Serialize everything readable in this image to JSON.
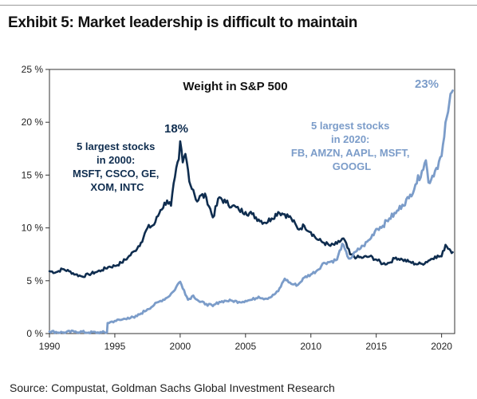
{
  "title": "Exhibit 5: Market leadership is difficult to maintain",
  "source": "Source: Compustat, Goldman Sachs Global Investment Research",
  "colors": {
    "series_2000": "#0f2d4f",
    "series_2020": "#7b9cc9",
    "axis": "#333333"
  },
  "chart_data": {
    "type": "line",
    "title": "Weight in S&P 500",
    "xlim": [
      1990,
      2021
    ],
    "ylim": [
      0,
      25
    ],
    "x_ticks": [
      1990,
      1995,
      2000,
      2005,
      2010,
      2015,
      2020
    ],
    "x_tick_labels": [
      "1990",
      "1995",
      "2000",
      "2005",
      "2010",
      "2015",
      "2020"
    ],
    "y_ticks": [
      0,
      5,
      10,
      15,
      20,
      25
    ],
    "y_tick_labels": [
      "0 %",
      "5 %",
      "10 %",
      "15 %",
      "20 %",
      "25 %"
    ],
    "grid": false,
    "series": [
      {
        "name": "5 largest stocks in 2000",
        "color": "#0f2d4f",
        "points": [
          [
            1990.0,
            5.9
          ],
          [
            1990.5,
            5.8
          ],
          [
            1991.0,
            6.1
          ],
          [
            1991.5,
            5.9
          ],
          [
            1992.0,
            5.6
          ],
          [
            1992.5,
            5.4
          ],
          [
            1993.0,
            5.6
          ],
          [
            1993.5,
            5.8
          ],
          [
            1994.0,
            6.0
          ],
          [
            1994.5,
            6.3
          ],
          [
            1995.0,
            6.4
          ],
          [
            1995.5,
            6.7
          ],
          [
            1996.0,
            7.2
          ],
          [
            1996.5,
            7.8
          ],
          [
            1997.0,
            8.6
          ],
          [
            1997.5,
            10.0
          ],
          [
            1998.0,
            10.3
          ],
          [
            1998.5,
            11.7
          ],
          [
            1999.0,
            12.6
          ],
          [
            1999.3,
            12.1
          ],
          [
            1999.6,
            14.8
          ],
          [
            1999.9,
            16.5
          ],
          [
            2000.0,
            18.2
          ],
          [
            2000.2,
            16.2
          ],
          [
            2000.4,
            17.0
          ],
          [
            2000.6,
            15.5
          ],
          [
            2000.8,
            14.0
          ],
          [
            2001.0,
            13.6
          ],
          [
            2001.3,
            12.5
          ],
          [
            2001.6,
            13.1
          ],
          [
            2002.0,
            12.9
          ],
          [
            2002.5,
            11.0
          ],
          [
            2003.0,
            12.9
          ],
          [
            2003.5,
            12.4
          ],
          [
            2004.0,
            12.1
          ],
          [
            2004.5,
            11.7
          ],
          [
            2005.0,
            11.5
          ],
          [
            2005.5,
            11.3
          ],
          [
            2006.0,
            10.8
          ],
          [
            2006.5,
            10.5
          ],
          [
            2007.0,
            10.9
          ],
          [
            2007.5,
            11.5
          ],
          [
            2008.0,
            11.3
          ],
          [
            2008.5,
            10.9
          ],
          [
            2009.0,
            9.9
          ],
          [
            2009.5,
            10.2
          ],
          [
            2010.0,
            9.6
          ],
          [
            2010.5,
            8.9
          ],
          [
            2011.0,
            8.6
          ],
          [
            2011.5,
            8.3
          ],
          [
            2012.0,
            8.5
          ],
          [
            2012.5,
            9.0
          ],
          [
            2013.0,
            7.5
          ],
          [
            2013.5,
            7.2
          ],
          [
            2014.0,
            7.2
          ],
          [
            2014.5,
            7.3
          ],
          [
            2015.0,
            7.0
          ],
          [
            2015.5,
            6.6
          ],
          [
            2016.0,
            6.7
          ],
          [
            2016.5,
            7.2
          ],
          [
            2017.0,
            7.0
          ],
          [
            2017.5,
            6.8
          ],
          [
            2018.0,
            6.6
          ],
          [
            2018.5,
            6.6
          ],
          [
            2019.0,
            6.9
          ],
          [
            2019.5,
            7.3
          ],
          [
            2020.0,
            7.3
          ],
          [
            2020.3,
            8.4
          ],
          [
            2020.6,
            8.0
          ],
          [
            2020.85,
            7.7
          ]
        ]
      },
      {
        "name": "5 largest stocks in 2020",
        "color": "#7b9cc9",
        "points": [
          [
            1990.0,
            0.2
          ],
          [
            1991.0,
            0.1
          ],
          [
            1992.0,
            0.2
          ],
          [
            1993.0,
            0.1
          ],
          [
            1994.0,
            0.1
          ],
          [
            1994.4,
            0.1
          ],
          [
            1994.45,
            1.0
          ],
          [
            1995.0,
            1.2
          ],
          [
            1995.5,
            1.3
          ],
          [
            1996.0,
            1.5
          ],
          [
            1996.5,
            1.5
          ],
          [
            1997.0,
            1.9
          ],
          [
            1997.5,
            2.3
          ],
          [
            1998.0,
            2.7
          ],
          [
            1998.5,
            3.1
          ],
          [
            1999.0,
            3.4
          ],
          [
            1999.5,
            4.0
          ],
          [
            1999.9,
            4.8
          ],
          [
            2000.0,
            4.9
          ],
          [
            2000.3,
            4.1
          ],
          [
            2000.6,
            3.2
          ],
          [
            2001.0,
            3.6
          ],
          [
            2001.5,
            3.0
          ],
          [
            2002.0,
            2.8
          ],
          [
            2002.5,
            2.6
          ],
          [
            2003.0,
            3.0
          ],
          [
            2003.5,
            3.1
          ],
          [
            2004.0,
            3.1
          ],
          [
            2004.5,
            3.0
          ],
          [
            2005.0,
            3.1
          ],
          [
            2005.5,
            3.2
          ],
          [
            2006.0,
            3.5
          ],
          [
            2006.5,
            3.3
          ],
          [
            2007.0,
            3.5
          ],
          [
            2007.5,
            4.0
          ],
          [
            2008.0,
            5.2
          ],
          [
            2008.5,
            4.7
          ],
          [
            2009.0,
            4.6
          ],
          [
            2009.5,
            5.3
          ],
          [
            2010.0,
            5.6
          ],
          [
            2010.5,
            6.0
          ],
          [
            2011.0,
            6.7
          ],
          [
            2011.5,
            6.8
          ],
          [
            2012.0,
            7.0
          ],
          [
            2012.4,
            8.5
          ],
          [
            2012.8,
            7.3
          ],
          [
            2013.0,
            7.1
          ],
          [
            2013.5,
            7.8
          ],
          [
            2014.0,
            8.3
          ],
          [
            2014.5,
            8.9
          ],
          [
            2015.0,
            9.9
          ],
          [
            2015.5,
            10.2
          ],
          [
            2016.0,
            10.9
          ],
          [
            2016.5,
            11.4
          ],
          [
            2017.0,
            12.2
          ],
          [
            2017.5,
            12.8
          ],
          [
            2018.0,
            14.1
          ],
          [
            2018.5,
            15.4
          ],
          [
            2018.8,
            16.4
          ],
          [
            2019.0,
            14.3
          ],
          [
            2019.5,
            15.4
          ],
          [
            2020.0,
            16.8
          ],
          [
            2020.2,
            18.6
          ],
          [
            2020.4,
            20.5
          ],
          [
            2020.6,
            21.9
          ],
          [
            2020.85,
            23.0
          ]
        ]
      }
    ],
    "annotations": [
      {
        "series": 0,
        "lines": [
          "5 largest stocks",
          "in 2000:",
          "MSFT, CSCO, GE,",
          "XOM, INTC"
        ]
      },
      {
        "series": 1,
        "lines": [
          "5 largest stocks",
          "in 2020:",
          "FB, AMZN, AAPL, MSFT,",
          "GOOGL"
        ]
      }
    ],
    "peak_labels": [
      {
        "series": 0,
        "text": "18%",
        "x": 2000.0,
        "y": 18.2
      },
      {
        "series": 1,
        "text": "23%",
        "x": 2020.85,
        "y": 23.0
      }
    ]
  }
}
